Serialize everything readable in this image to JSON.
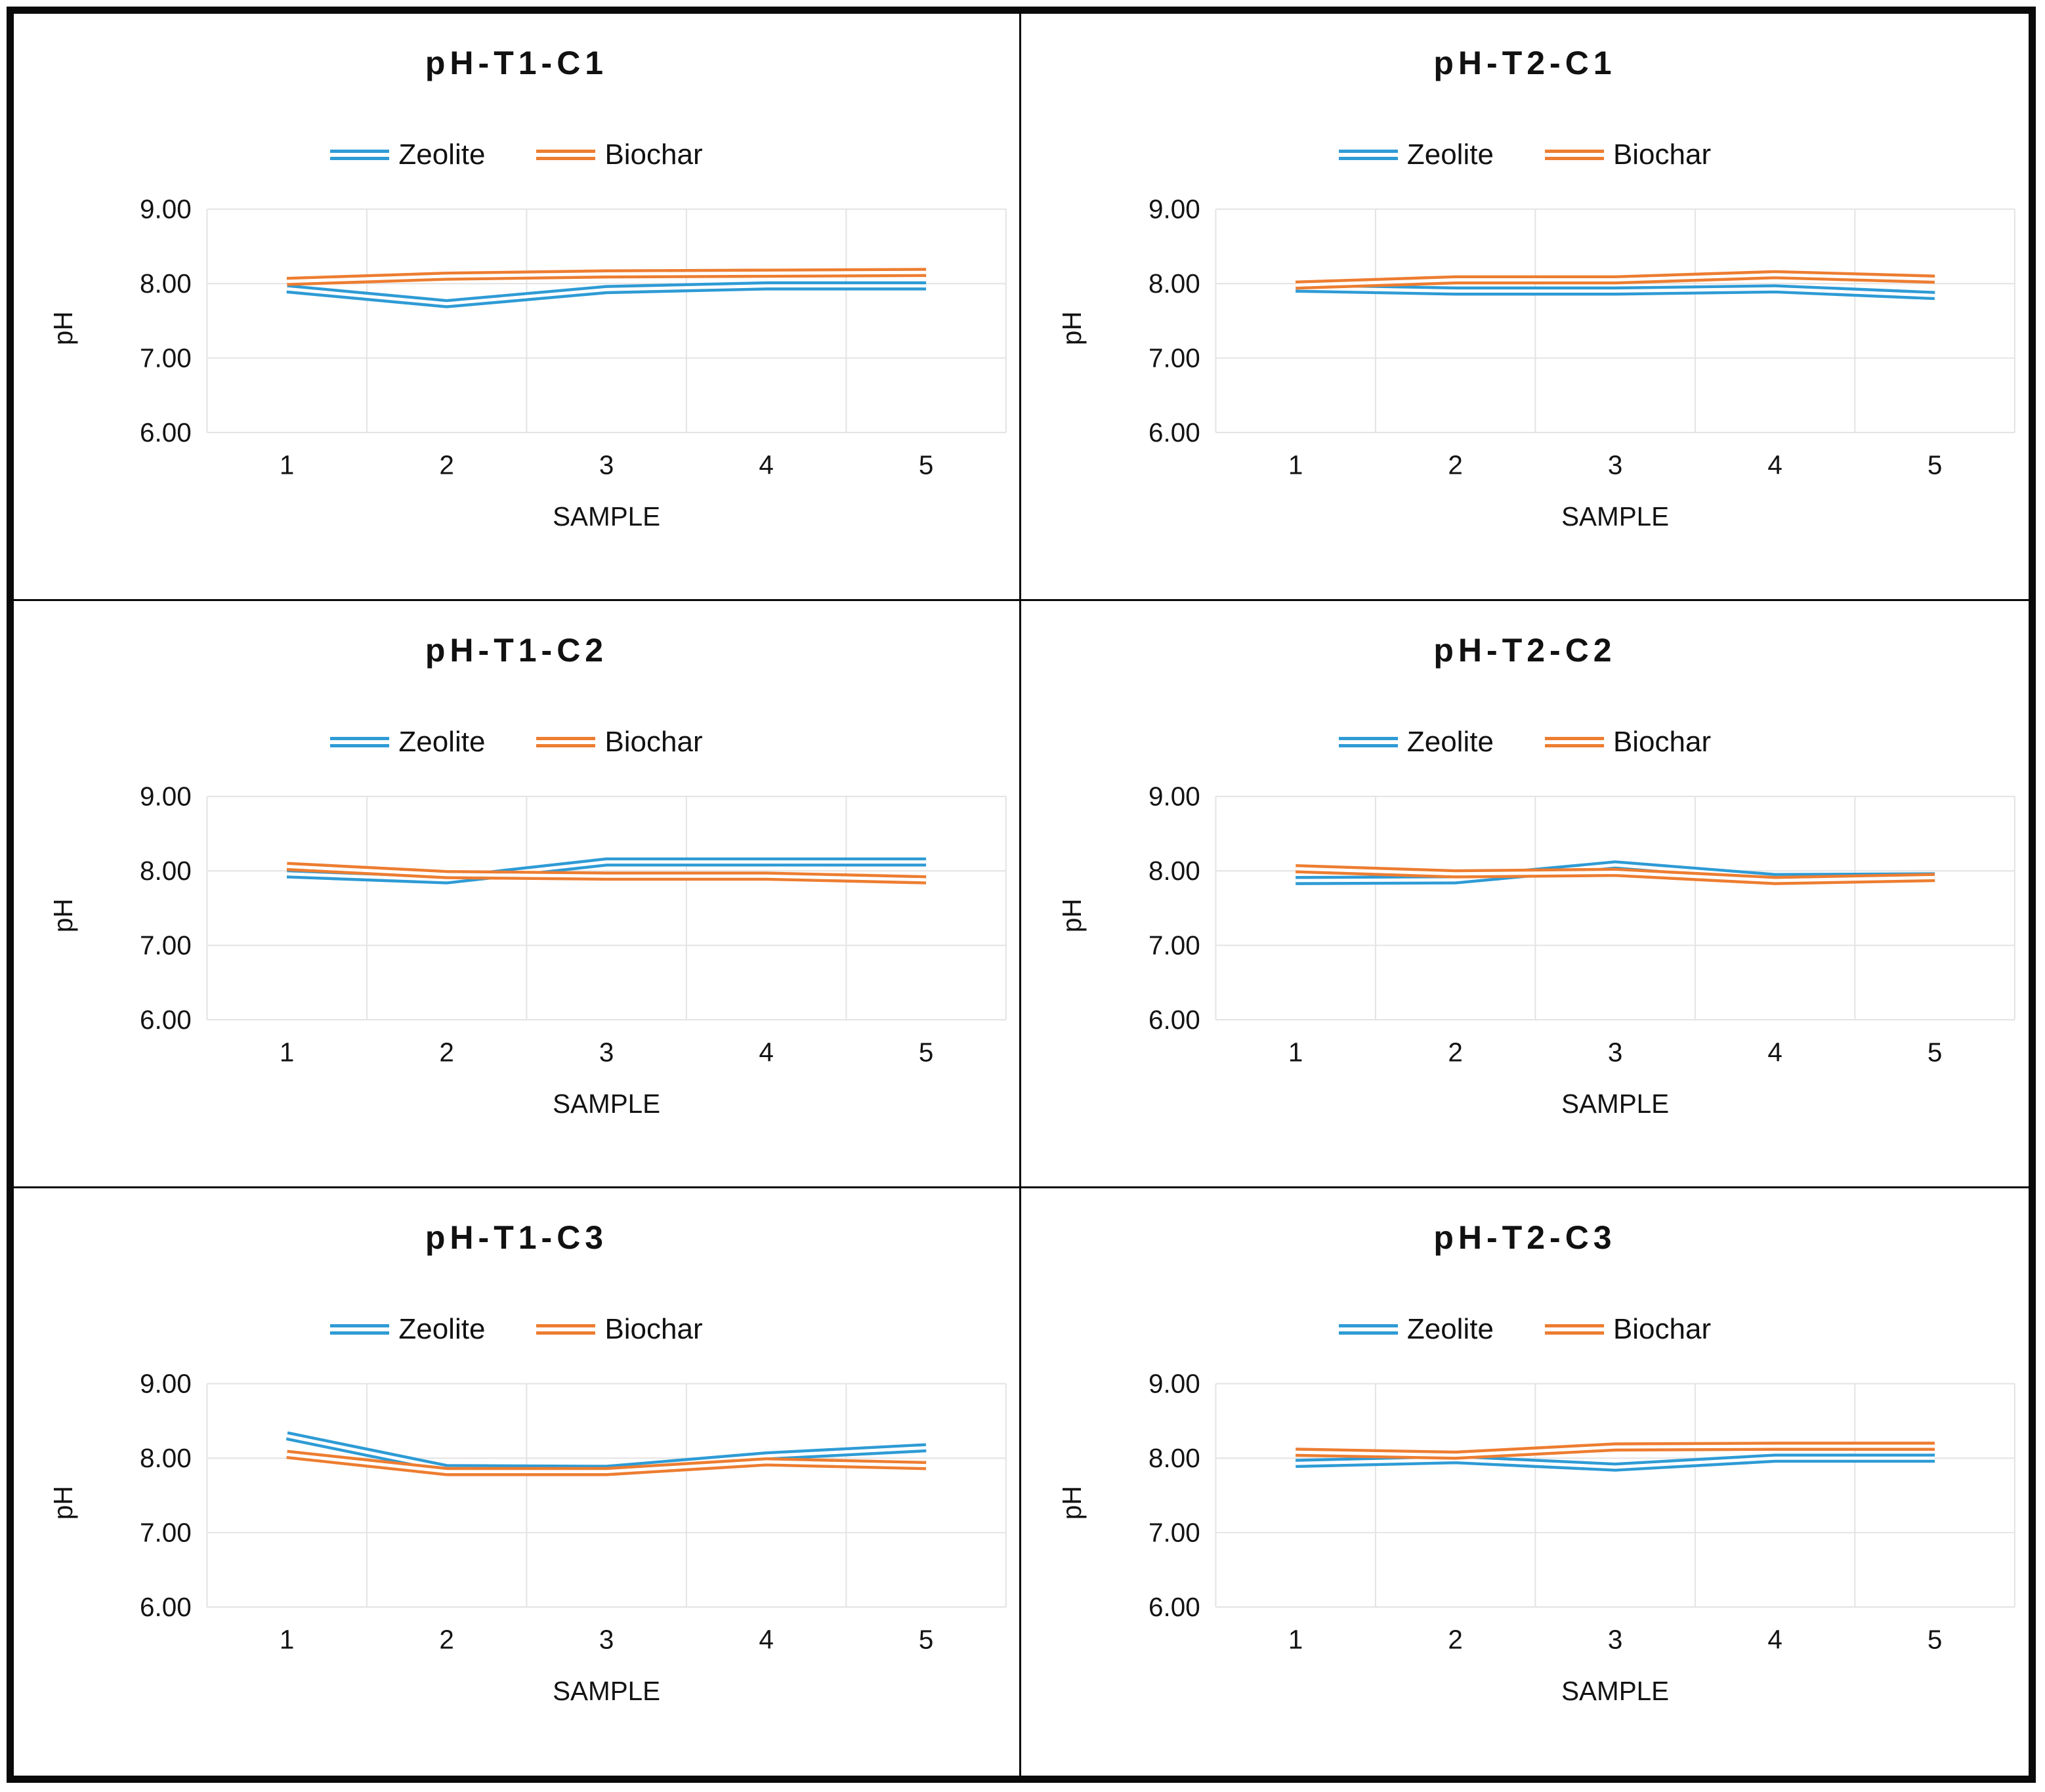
{
  "colors": {
    "zeolite": "#2E9BD5",
    "biochar": "#ED7D31",
    "gridline": "#E3E3E3",
    "line_core": "#FFFFFF",
    "text": "#111111",
    "frame_border": "#0A0A0A",
    "background": "#FFFFFF"
  },
  "axis": {
    "y_label": "pH",
    "x_label": "SAMPLE",
    "y_ticks": [
      9,
      8,
      7,
      6
    ],
    "y_tick_labels": [
      "9.00",
      "8.00",
      "7.00",
      "6.00"
    ],
    "x_tick_labels": [
      "1",
      "2",
      "3",
      "4",
      "5"
    ],
    "y_min": 6,
    "y_max": 9,
    "grid": "on",
    "legend_position": "top"
  },
  "chart_data": [
    {
      "type": "line",
      "title": "pH-T1-C1",
      "xlabel": "SAMPLE",
      "ylabel": "pH",
      "ylim": [
        6,
        9
      ],
      "categories": [
        1,
        2,
        3,
        4,
        5
      ],
      "series": [
        {
          "name": "Zeolite",
          "color": "#2E9BD5",
          "values": [
            7.93,
            7.73,
            7.92,
            7.97,
            7.97
          ]
        },
        {
          "name": "Biochar",
          "color": "#ED7D31",
          "values": [
            8.03,
            8.1,
            8.13,
            8.14,
            8.15
          ]
        }
      ]
    },
    {
      "type": "line",
      "title": "pH-T2-C1",
      "xlabel": "SAMPLE",
      "ylabel": "pH",
      "ylim": [
        6,
        9
      ],
      "categories": [
        1,
        2,
        3,
        4,
        5
      ],
      "series": [
        {
          "name": "Zeolite",
          "color": "#2E9BD5",
          "values": [
            7.94,
            7.9,
            7.9,
            7.93,
            7.84
          ]
        },
        {
          "name": "Biochar",
          "color": "#ED7D31",
          "values": [
            7.98,
            8.05,
            8.05,
            8.12,
            8.06
          ]
        }
      ]
    },
    {
      "type": "line",
      "title": "pH-T1-C2",
      "xlabel": "SAMPLE",
      "ylabel": "pH",
      "ylim": [
        6,
        9
      ],
      "categories": [
        1,
        2,
        3,
        4,
        5
      ],
      "series": [
        {
          "name": "Zeolite",
          "color": "#2E9BD5",
          "values": [
            7.96,
            7.88,
            8.12,
            8.12,
            8.12
          ]
        },
        {
          "name": "Biochar",
          "color": "#ED7D31",
          "values": [
            8.06,
            7.95,
            7.93,
            7.93,
            7.88
          ]
        }
      ]
    },
    {
      "type": "line",
      "title": "pH-T2-C2",
      "xlabel": "SAMPLE",
      "ylabel": "pH",
      "ylim": [
        6,
        9
      ],
      "categories": [
        1,
        2,
        3,
        4,
        5
      ],
      "series": [
        {
          "name": "Zeolite",
          "color": "#2E9BD5",
          "values": [
            7.87,
            7.88,
            8.08,
            7.91,
            7.92
          ]
        },
        {
          "name": "Biochar",
          "color": "#ED7D31",
          "values": [
            8.03,
            7.96,
            7.98,
            7.87,
            7.91
          ]
        }
      ]
    },
    {
      "type": "line",
      "title": "pH-T1-C3",
      "xlabel": "SAMPLE",
      "ylabel": "pH",
      "ylim": [
        6,
        9
      ],
      "categories": [
        1,
        2,
        3,
        4,
        5
      ],
      "series": [
        {
          "name": "Zeolite",
          "color": "#2E9BD5",
          "values": [
            8.3,
            7.86,
            7.85,
            8.03,
            8.14
          ]
        },
        {
          "name": "Biochar",
          "color": "#ED7D31",
          "values": [
            8.05,
            7.82,
            7.82,
            7.95,
            7.9
          ]
        }
      ]
    },
    {
      "type": "line",
      "title": "pH-T2-C3",
      "xlabel": "SAMPLE",
      "ylabel": "pH",
      "ylim": [
        6,
        9
      ],
      "categories": [
        1,
        2,
        3,
        4,
        5
      ],
      "series": [
        {
          "name": "Zeolite",
          "color": "#2E9BD5",
          "values": [
            7.93,
            7.98,
            7.88,
            8.0,
            8.0
          ]
        },
        {
          "name": "Biochar",
          "color": "#ED7D31",
          "values": [
            8.08,
            8.04,
            8.15,
            8.16,
            8.16
          ]
        }
      ]
    }
  ]
}
